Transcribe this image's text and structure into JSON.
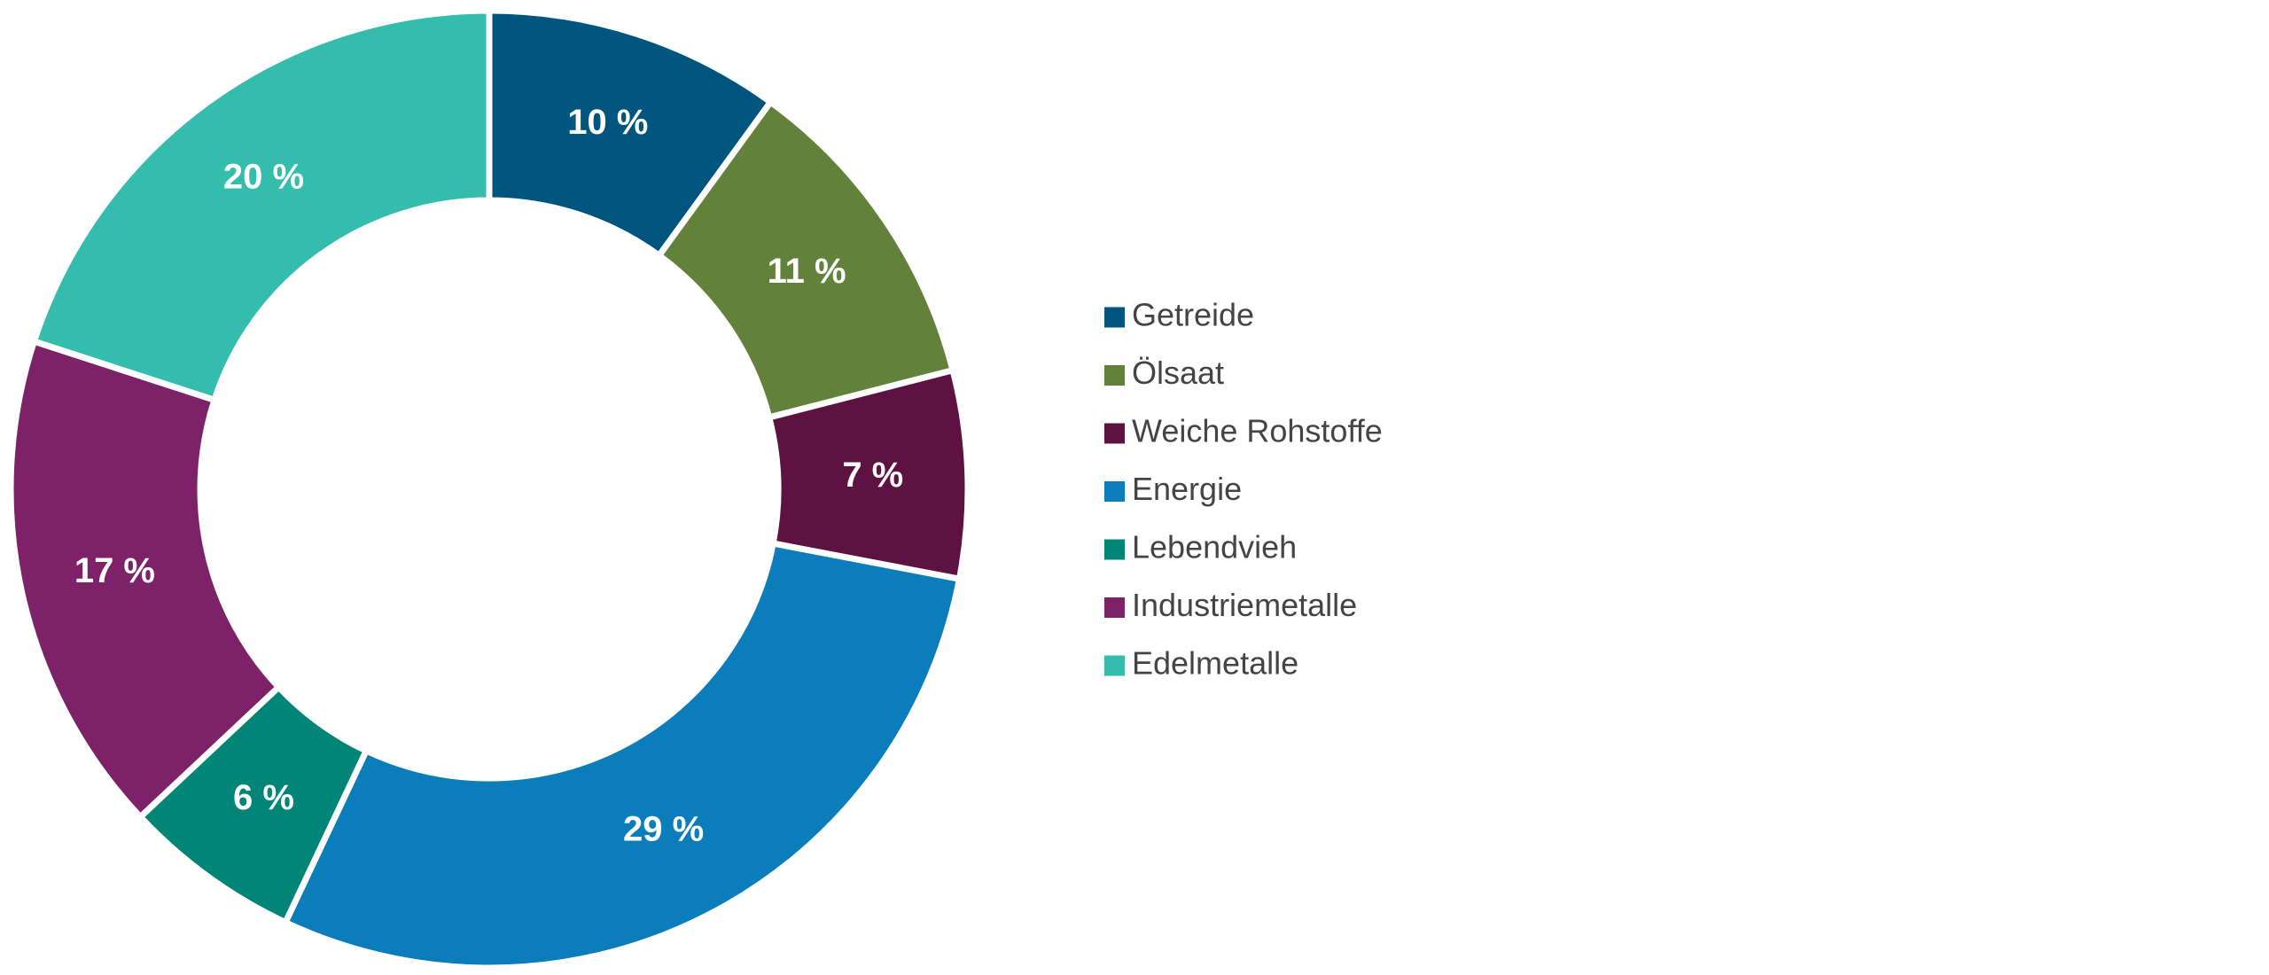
{
  "chart_data": {
    "type": "pie",
    "categories": [
      "Getreide",
      "Ölsaat",
      "Weiche Rohstoffe",
      "Energie",
      "Lebendvieh",
      "Industriemetalle",
      "Edelmetalle"
    ],
    "values": [
      10,
      11,
      7,
      29,
      6,
      17,
      20
    ],
    "value_labels": [
      "10 %",
      "11 %",
      "7 %",
      "29 %",
      "6 %",
      "17 %",
      "20 %"
    ],
    "colors": [
      "#00557f",
      "#62823c",
      "#5e1242",
      "#0b7dba",
      "#008577",
      "#7d2268",
      "#34bcad"
    ],
    "legend": "right"
  }
}
